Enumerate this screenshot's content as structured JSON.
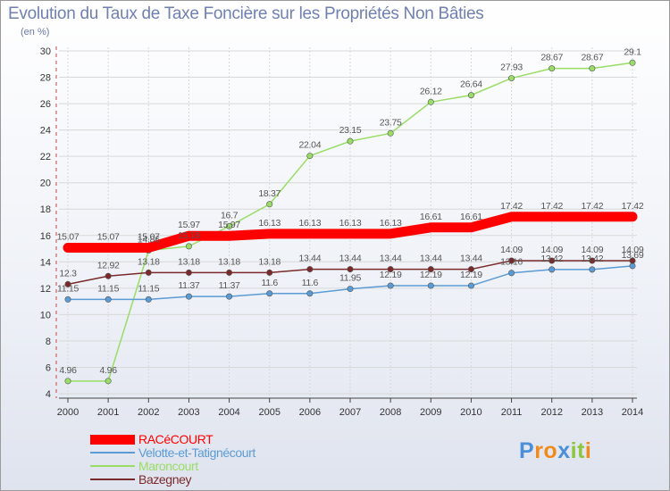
{
  "title": "Evolution du Taux de Taxe Foncière sur les Propriétés Non Bâties",
  "unit": "(en %)",
  "chart_data": {
    "type": "line",
    "x": [
      "2000",
      "2001",
      "2002",
      "2003",
      "2004",
      "2005",
      "2006",
      "2007",
      "2008",
      "2009",
      "2010",
      "2011",
      "2012",
      "2013",
      "2014"
    ],
    "ylim": [
      4,
      30
    ],
    "yticks": [
      4,
      6,
      8,
      10,
      12,
      14,
      16,
      18,
      20,
      22,
      24,
      26,
      28,
      30
    ],
    "legend_position": "bottom-left",
    "series": [
      {
        "name": "RACéCOURT",
        "color": "#ff0000",
        "values": [
          15.07,
          15.07,
          15.07,
          15.97,
          15.97,
          16.13,
          16.13,
          16.13,
          16.13,
          16.61,
          16.61,
          17.42,
          17.42,
          17.42,
          17.42
        ],
        "labels": [
          "15.07",
          "15.07",
          "15.07",
          "15.97",
          "15.97",
          "16.13",
          "16.13",
          "16.13",
          "16.13",
          "16.61",
          "16.61",
          "17.42",
          "17.42",
          "17.42",
          "17.42"
        ]
      },
      {
        "name": "Velotte-et-Tatignécourt",
        "color": "#5b9bd5",
        "values": [
          11.15,
          11.15,
          11.15,
          11.37,
          11.37,
          11.6,
          11.6,
          11.95,
          12.19,
          12.19,
          12.19,
          13.16,
          13.42,
          13.42,
          13.69
        ],
        "labels": [
          "11.15",
          "11.15",
          "11.15",
          "11.37",
          "11.37",
          "11.6",
          "11.6",
          "11.95",
          "12.19",
          "12.19",
          "12.19",
          "13.16",
          "13.42",
          "13.42",
          "13.69"
        ]
      },
      {
        "name": "Maroncourt",
        "color": "#99dd66",
        "values": [
          4.96,
          4.96,
          14.86,
          15.18,
          16.7,
          18.37,
          22.04,
          23.15,
          23.75,
          26.12,
          26.64,
          27.93,
          28.67,
          28.67,
          29.1
        ],
        "labels": [
          "4.96",
          "4.96",
          "14.86",
          "15.18",
          "16.7",
          "18.37",
          "22.04",
          "23.15",
          "23.75",
          "26.12",
          "26.64",
          "27.93",
          "28.67",
          "28.67",
          "29.1"
        ]
      },
      {
        "name": "Bazegney",
        "color": "#7a2a2a",
        "values": [
          12.3,
          12.92,
          13.18,
          13.18,
          13.18,
          13.18,
          13.44,
          13.44,
          13.44,
          13.44,
          13.44,
          14.09,
          14.09,
          14.09,
          14.09
        ],
        "labels": [
          "12.3",
          "12.92",
          "13.18",
          "13.18",
          "13.18",
          "13.18",
          "13.44",
          "13.44",
          "13.44",
          "13.44",
          "13.44",
          "14.09",
          "14.09",
          "14.09",
          "14.09"
        ]
      }
    ]
  },
  "logo": {
    "text": "Proxiti",
    "letters": [
      "P",
      "r",
      "o",
      "x",
      "i",
      "t",
      "i"
    ],
    "colors": [
      "#4a8fd8",
      "#f08a1c",
      "#f08a1c",
      "#4a8fd8",
      "#8cc63f",
      "#8cc63f",
      "#f08a1c"
    ]
  }
}
